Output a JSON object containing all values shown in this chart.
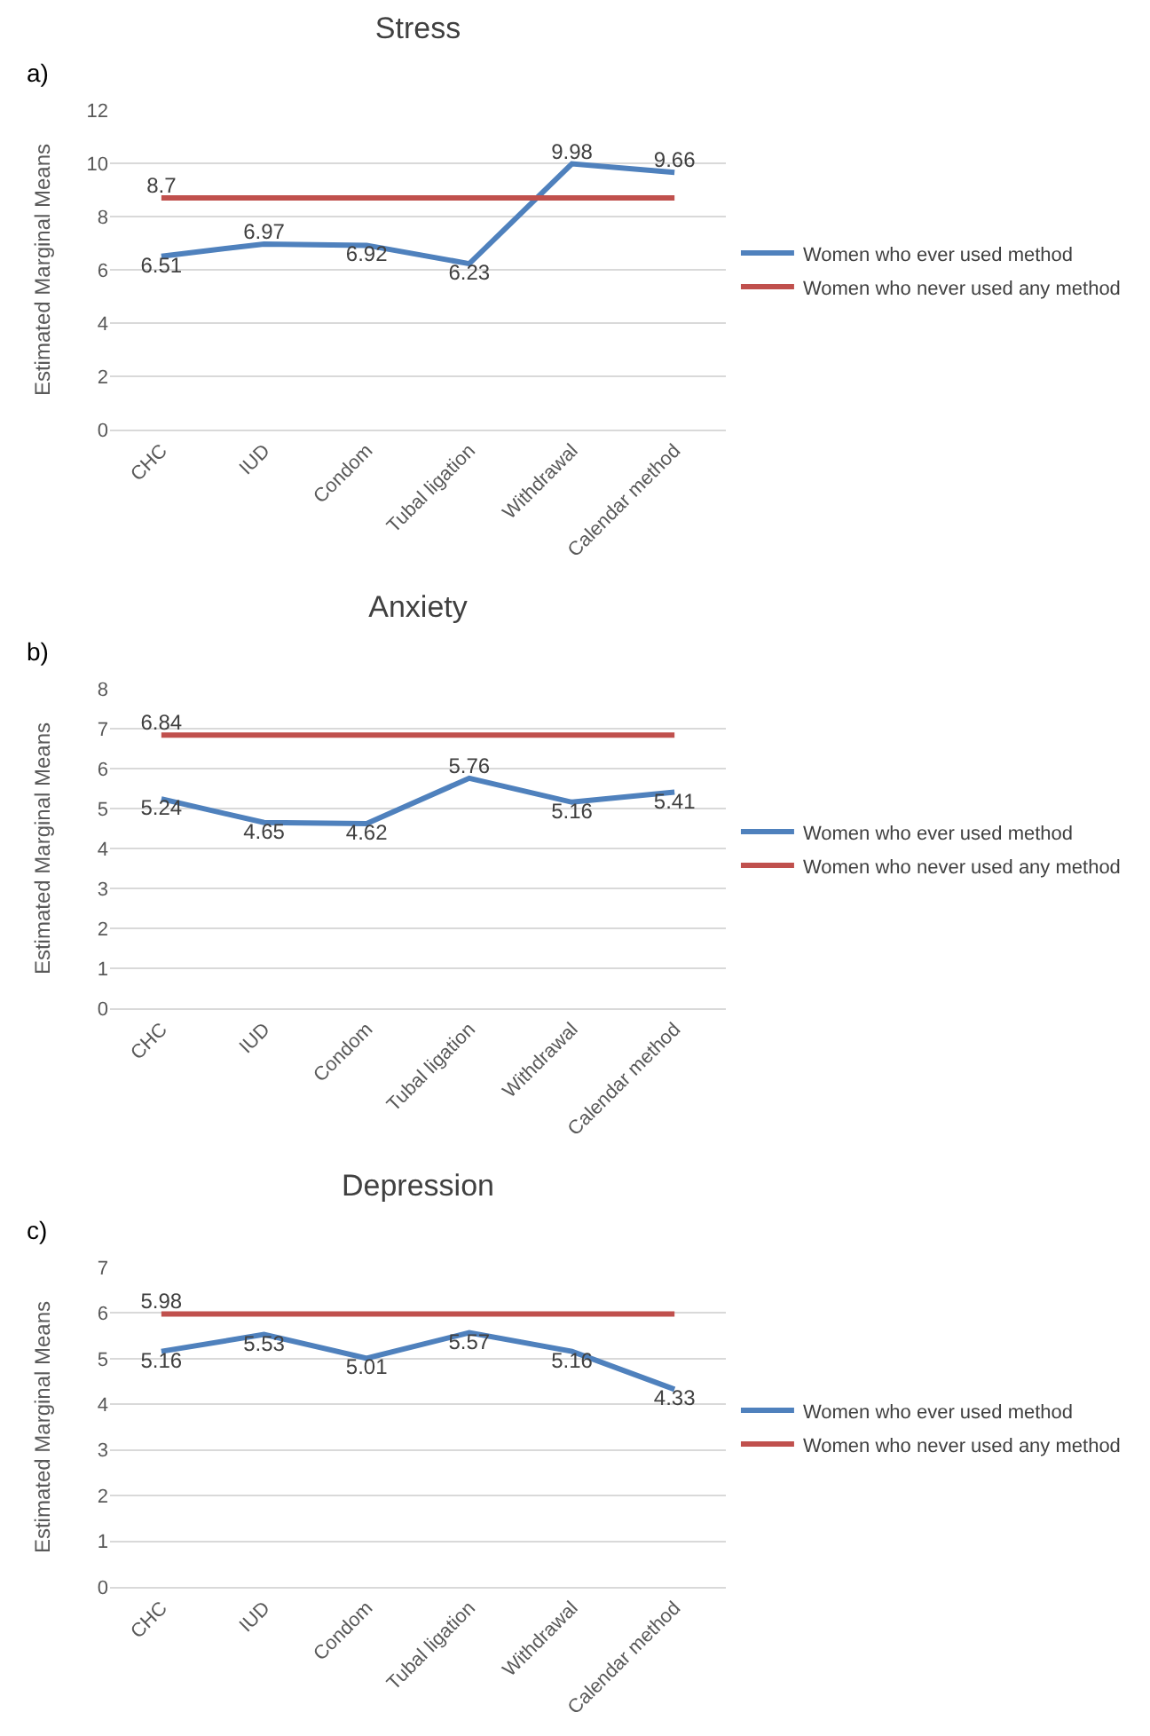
{
  "chart_data": [
    {
      "type": "line",
      "title": "Stress",
      "ylabel": "Estimated Marginal Means",
      "annotations": [
        "a)"
      ],
      "categories": [
        "CHC",
        "IUD",
        "Condom",
        "Tubal ligation",
        "Withdrawal",
        "Calendar method"
      ],
      "ylim": [
        0,
        12
      ],
      "yticks": [
        0,
        2,
        4,
        6,
        8,
        10,
        12
      ],
      "grid": "y",
      "legend": "right",
      "marker": "none",
      "line_style": "solid",
      "series": [
        {
          "name": "Women who ever used method",
          "color": "#4f81bd",
          "values": [
            6.51,
            6.97,
            6.92,
            6.23,
            9.98,
            9.66
          ],
          "value_labels": [
            "6.51",
            "6.97",
            "6.92",
            "6.23",
            "9.98",
            "9.66"
          ]
        },
        {
          "name": "Women who never used any method",
          "color": "#c0504d",
          "values": [
            8.7,
            8.7,
            8.7,
            8.7,
            8.7,
            8.7
          ],
          "value_labels": [
            "8.7",
            null,
            null,
            null,
            null,
            null
          ]
        }
      ]
    },
    {
      "type": "line",
      "title": "Anxiety",
      "ylabel": "Estimated Marginal Means",
      "annotations": [
        "b)"
      ],
      "categories": [
        "CHC",
        "IUD",
        "Condom",
        "Tubal ligation",
        "Withdrawal",
        "Calendar method"
      ],
      "ylim": [
        0,
        8
      ],
      "yticks": [
        0,
        1,
        2,
        3,
        4,
        5,
        6,
        7,
        8
      ],
      "grid": "y",
      "legend": "right",
      "marker": "none",
      "line_style": "solid",
      "series": [
        {
          "name": "Women who ever used method",
          "color": "#4f81bd",
          "values": [
            5.24,
            4.65,
            4.62,
            5.76,
            5.16,
            5.41
          ],
          "value_labels": [
            "5.24",
            "4.65",
            "4.62",
            "5.76",
            "5.16",
            "5.41"
          ]
        },
        {
          "name": "Women who never used any method",
          "color": "#c0504d",
          "values": [
            6.84,
            6.84,
            6.84,
            6.84,
            6.84,
            6.84
          ],
          "value_labels": [
            "6.84",
            null,
            null,
            null,
            null,
            null
          ]
        }
      ]
    },
    {
      "type": "line",
      "title": "Depression",
      "ylabel": "Estimated Marginal Means",
      "annotations": [
        "c)"
      ],
      "categories": [
        "CHC",
        "IUD",
        "Condom",
        "Tubal ligation",
        "Withdrawal",
        "Calendar method"
      ],
      "ylim": [
        0,
        7
      ],
      "yticks": [
        0,
        1,
        2,
        3,
        4,
        5,
        6,
        7
      ],
      "grid": "y",
      "legend": "right",
      "marker": "none",
      "line_style": "solid",
      "series": [
        {
          "name": "Women who ever used method",
          "color": "#4f81bd",
          "values": [
            5.16,
            5.53,
            5.01,
            5.57,
            5.16,
            4.33
          ],
          "value_labels": [
            "5.16",
            "5.53",
            "5.01",
            "5.57",
            "5.16",
            "4.33"
          ]
        },
        {
          "name": "Women who never used any method",
          "color": "#c0504d",
          "values": [
            5.98,
            5.98,
            5.98,
            5.98,
            5.98,
            5.98
          ],
          "value_labels": [
            "5.98",
            null,
            null,
            null,
            null,
            null
          ]
        }
      ]
    }
  ]
}
